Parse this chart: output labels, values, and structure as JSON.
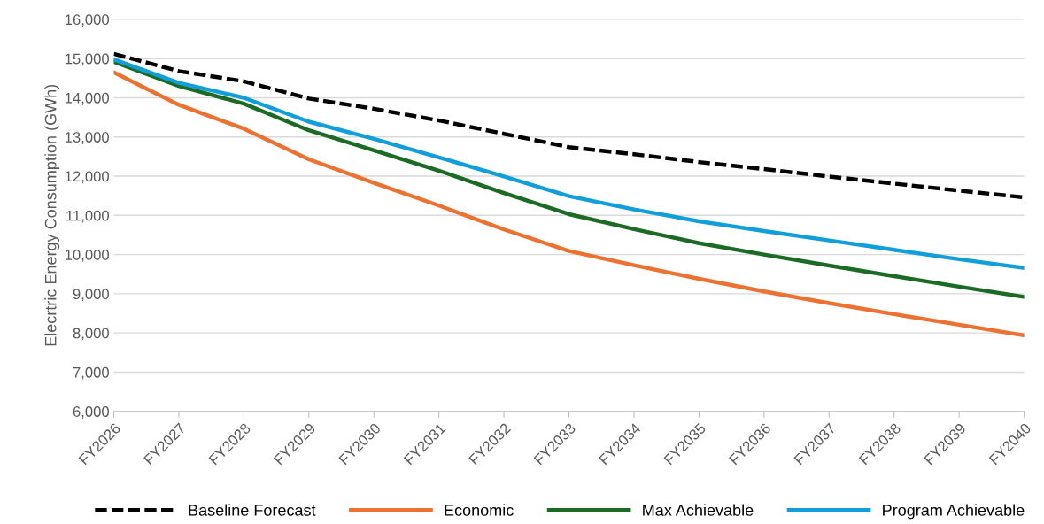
{
  "chart_data": {
    "type": "line",
    "ylabel": "Elecrtric Energy Consumption (GWh)",
    "categories": [
      "FY2026",
      "FY2027",
      "FY2028",
      "FY2029",
      "FY2030",
      "FY2031",
      "FY2032",
      "FY2033",
      "FY2034",
      "FY2035",
      "FY2036",
      "FY2037",
      "FY2038",
      "FY2039",
      "FY2040"
    ],
    "series": [
      {
        "name": "Baseline Forecast",
        "color": "#000000",
        "line_style": "dashed",
        "values": [
          15120,
          14680,
          14420,
          13980,
          13720,
          13420,
          13080,
          12740,
          12560,
          12360,
          12180,
          11990,
          11810,
          11630,
          11460
        ]
      },
      {
        "name": "Economic",
        "color": "#ed7231",
        "values": [
          14650,
          13820,
          13210,
          12430,
          11830,
          11250,
          10640,
          10090,
          9730,
          9380,
          9060,
          8760,
          8480,
          8210,
          7940
        ]
      },
      {
        "name": "Max Achievable",
        "color": "#1b6b24",
        "values": [
          14920,
          14300,
          13850,
          13170,
          12660,
          12140,
          11570,
          11030,
          10650,
          10290,
          10000,
          9720,
          9450,
          9180,
          8920
        ]
      },
      {
        "name": "Program Achievable",
        "color": "#109fda",
        "values": [
          14980,
          14380,
          14000,
          13390,
          12950,
          12480,
          11990,
          11490,
          11150,
          10850,
          10600,
          10360,
          10120,
          9880,
          9660
        ]
      }
    ],
    "ylim": [
      6000,
      16000
    ],
    "yticks": [
      {
        "value": 6000,
        "label": "6,000"
      },
      {
        "value": 7000,
        "label": "7,000"
      },
      {
        "value": 8000,
        "label": "8,000"
      },
      {
        "value": 9000,
        "label": "9,000"
      },
      {
        "value": 10000,
        "label": "10,000"
      },
      {
        "value": 11000,
        "label": "11,000"
      },
      {
        "value": 12000,
        "label": "12,000"
      },
      {
        "value": 13000,
        "label": "13,000"
      },
      {
        "value": 14000,
        "label": "14,000"
      },
      {
        "value": 15000,
        "label": "15,000"
      },
      {
        "value": 16000,
        "label": "16,000"
      }
    ],
    "grid": "y",
    "legend": "bottom",
    "marker": "none"
  }
}
